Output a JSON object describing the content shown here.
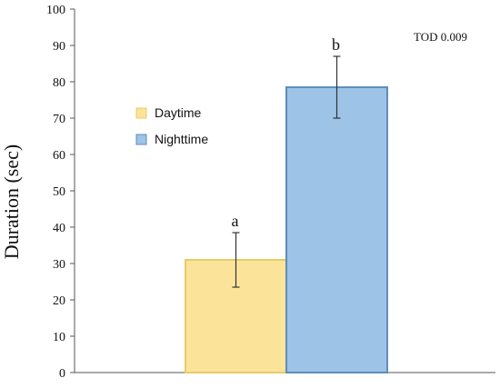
{
  "chart_data": {
    "type": "bar",
    "title": "",
    "xlabel": "",
    "ylabel": "Duration (sec)",
    "ylim": [
      0,
      100
    ],
    "yticks": [
      0,
      10,
      20,
      30,
      40,
      50,
      60,
      70,
      80,
      90,
      100
    ],
    "grid": false,
    "legend_position": "left",
    "series": [
      {
        "name": "Daytime",
        "value": 31,
        "error_low": 23.5,
        "error_high": 38.5,
        "color": "#FBE49A",
        "stroke": "#E8CB66",
        "label": "a"
      },
      {
        "name": "Nighttime",
        "value": 78.5,
        "error_low": 70,
        "error_high": 87,
        "color": "#9DC3E6",
        "stroke": "#5F8DBB",
        "label": "b"
      }
    ],
    "annotation": "TOD 0.009"
  }
}
